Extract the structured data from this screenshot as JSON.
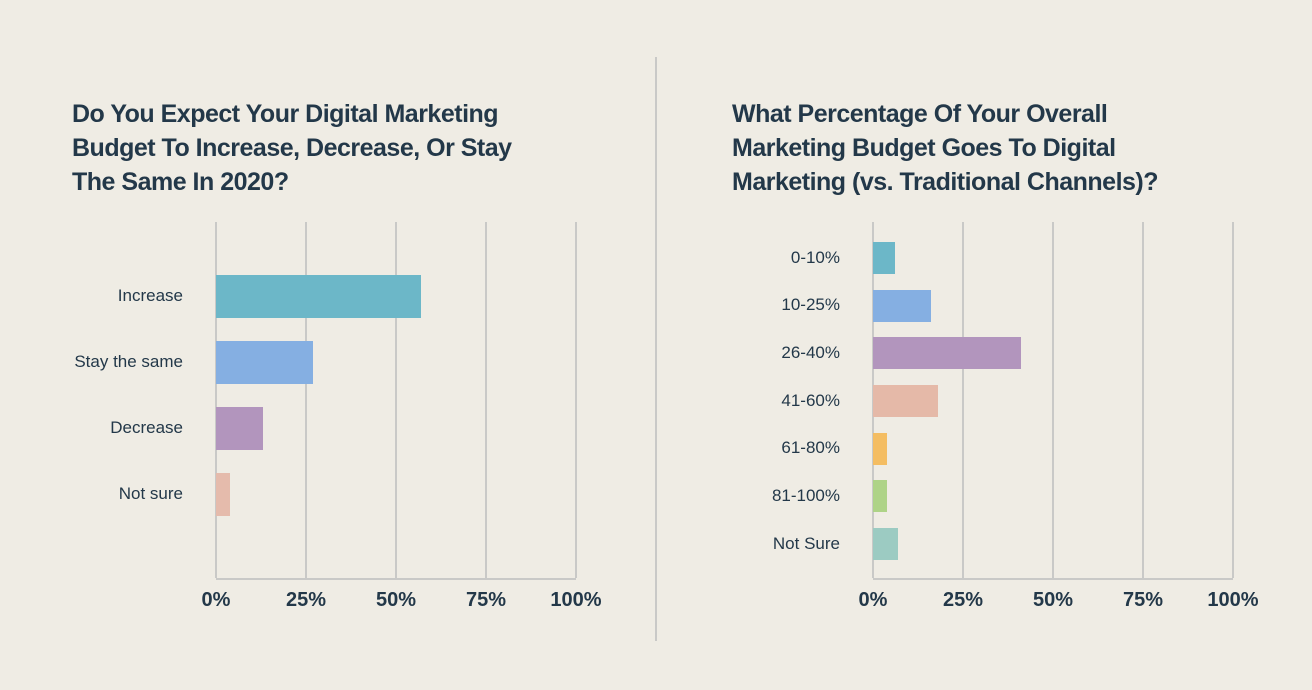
{
  "page": {
    "background_color": "#efece4",
    "text_color": "#233849",
    "grid_color": "#c9c9c7",
    "divider_color": "#c9c9c7"
  },
  "chart_data": [
    {
      "type": "bar",
      "orientation": "horizontal",
      "title": "Do You Expect Your Digital Marketing\nBudget To Increase, Decrease, Or Stay\nThe Same In 2020?",
      "categories": [
        "Increase",
        "Stay the same",
        "Decrease",
        "Not sure"
      ],
      "values": [
        57,
        27,
        13,
        4
      ],
      "colors": [
        "#6cb7c8",
        "#85afe2",
        "#b295bd",
        "#e5bbac"
      ],
      "xlabel": "",
      "ylabel": "",
      "xlim": [
        0,
        100
      ],
      "x_ticks": [
        "0%",
        "25%",
        "50%",
        "75%",
        "100%"
      ],
      "grid": true,
      "legend": false
    },
    {
      "type": "bar",
      "orientation": "horizontal",
      "title": "What Percentage Of Your Overall\nMarketing Budget Goes To Digital\nMarketing (vs. Traditional Channels)?",
      "categories": [
        "0-10%",
        "10-25%",
        "26-40%",
        "41-60%",
        "61-80%",
        "81-100%",
        "Not Sure"
      ],
      "values": [
        6,
        16,
        41,
        18,
        4,
        4,
        7
      ],
      "colors": [
        "#6cb7c8",
        "#85afe2",
        "#b295bd",
        "#e5b9a8",
        "#f4bd62",
        "#aed387",
        "#9ccbc2"
      ],
      "xlabel": "",
      "ylabel": "",
      "xlim": [
        0,
        100
      ],
      "x_ticks": [
        "0%",
        "25%",
        "50%",
        "75%",
        "100%"
      ],
      "grid": true,
      "legend": false
    }
  ]
}
